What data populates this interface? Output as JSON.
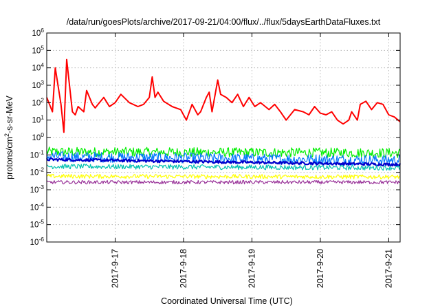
{
  "chart_data": {
    "type": "line",
    "title": "/data/run/goesPlots/archive/2017-09-21/04:00/flux/../flux/5daysEarthDataFluxes.txt",
    "xlabel": "Coordinated Universal Time (UTC)",
    "ylabel_parts": {
      "base": "protons/cm",
      "sup": "2",
      "rest": "-s-sr-MeV"
    },
    "yscale": "log",
    "ylim": [
      1e-06,
      1000000.0
    ],
    "yticks": [
      {
        "value": 1e-06,
        "base": "10",
        "exp": "-6"
      },
      {
        "value": 1e-05,
        "base": "10",
        "exp": "-5"
      },
      {
        "value": 0.0001,
        "base": "10",
        "exp": "-4"
      },
      {
        "value": 0.001,
        "base": "10",
        "exp": "-3"
      },
      {
        "value": 0.01,
        "base": "10",
        "exp": "-2"
      },
      {
        "value": 0.1,
        "base": "10",
        "exp": "-1"
      },
      {
        "value": 1.0,
        "base": "10",
        "exp": "0"
      },
      {
        "value": 10.0,
        "base": "10",
        "exp": "1"
      },
      {
        "value": 100.0,
        "base": "10",
        "exp": "2"
      },
      {
        "value": 1000.0,
        "base": "10",
        "exp": "3"
      },
      {
        "value": 10000.0,
        "base": "10",
        "exp": "4"
      },
      {
        "value": 100000.0,
        "base": "10",
        "exp": "5"
      },
      {
        "value": 1000000.0,
        "base": "10",
        "exp": "6"
      }
    ],
    "xlim": [
      "2017-09-16 00:00",
      "2017-09-21 04:00"
    ],
    "xticks": [
      "2017-9-17",
      "2017-9-18",
      "2017-9-19",
      "2017-9-20",
      "2017-9-21"
    ],
    "grid": true,
    "series": [
      {
        "color": "#ff0000",
        "width": 2.0,
        "x": [
          "2017-09-16 00:00",
          "2017-09-16 02:00",
          "2017-09-16 03:00",
          "2017-09-16 05:00",
          "2017-09-16 06:00",
          "2017-09-16 07:00",
          "2017-09-16 09:00",
          "2017-09-16 10:00",
          "2017-09-16 11:00",
          "2017-09-16 13:00",
          "2017-09-16 14:00",
          "2017-09-16 16:00",
          "2017-09-16 17:00",
          "2017-09-16 18:00",
          "2017-09-16 20:00",
          "2017-09-16 22:00",
          "2017-09-17 00:00",
          "2017-09-17 02:00",
          "2017-09-17 05:00",
          "2017-09-17 08:00",
          "2017-09-17 10:00",
          "2017-09-17 12:00",
          "2017-09-17 13:00",
          "2017-09-17 14:00",
          "2017-09-17 15:00",
          "2017-09-17 17:00",
          "2017-09-17 20:00",
          "2017-09-17 23:00",
          "2017-09-18 01:00",
          "2017-09-18 03:00",
          "2017-09-18 05:00",
          "2017-09-18 06:00",
          "2017-09-18 08:00",
          "2017-09-18 09:00",
          "2017-09-18 10:00",
          "2017-09-18 12:00",
          "2017-09-18 13:00",
          "2017-09-18 15:00",
          "2017-09-18 17:00",
          "2017-09-18 19:00",
          "2017-09-18 21:00",
          "2017-09-18 23:00",
          "2017-09-19 01:00",
          "2017-09-19 03:00",
          "2017-09-19 06:00",
          "2017-09-19 08:00",
          "2017-09-19 10:00",
          "2017-09-19 12:00",
          "2017-09-19 15:00",
          "2017-09-19 18:00",
          "2017-09-19 20:00",
          "2017-09-19 22:00",
          "2017-09-20 00:00",
          "2017-09-20 02:00",
          "2017-09-20 04:00",
          "2017-09-20 06:00",
          "2017-09-20 08:00",
          "2017-09-20 10:00",
          "2017-09-20 11:00",
          "2017-09-20 13:00",
          "2017-09-20 14:00",
          "2017-09-20 16:00",
          "2017-09-20 18:00",
          "2017-09-20 20:00",
          "2017-09-20 22:00",
          "2017-09-21 00:00",
          "2017-09-21 02:00",
          "2017-09-21 04:00"
        ],
        "y": [
          200,
          30,
          10000.0,
          80,
          2,
          30000.0,
          30,
          20,
          60,
          30,
          500,
          80,
          50,
          80,
          200,
          60,
          100,
          300,
          100,
          60,
          80,
          200,
          3000.0,
          200,
          400,
          120,
          60,
          40,
          10,
          80,
          20,
          30,
          200,
          400,
          30,
          2000.0,
          300,
          200,
          100,
          300,
          60,
          200,
          60,
          100,
          40,
          80,
          30,
          10,
          40,
          30,
          20,
          60,
          25,
          20,
          30,
          10,
          6,
          10,
          30,
          10,
          80,
          120,
          40,
          100,
          80,
          20,
          15,
          8
        ]
      },
      {
        "color": "#00ee00",
        "width": 1.2,
        "x": [
          "2017-09-16 00:00",
          "2017-09-21 04:00"
        ],
        "y": [
          0.15,
          0.13
        ],
        "noise": 0.28
      },
      {
        "color": "#0077ff",
        "width": 1.2,
        "x": [
          "2017-09-16 00:00",
          "2017-09-21 04:00"
        ],
        "y": [
          0.08,
          0.05
        ],
        "noise": 0.3
      },
      {
        "color": "#0000cc",
        "width": 2.2,
        "x": [
          "2017-09-16 00:00",
          "2017-09-21 04:00"
        ],
        "y": [
          0.055,
          0.028
        ],
        "noise": 0.08
      },
      {
        "color": "#00c0b0",
        "width": 1.2,
        "x": [
          "2017-09-16 00:00",
          "2017-09-21 04:00"
        ],
        "y": [
          0.022,
          0.018
        ],
        "noise": 0.14
      },
      {
        "color": "#ffff00",
        "width": 1.2,
        "x": [
          "2017-09-16 00:00",
          "2017-09-21 04:00"
        ],
        "y": [
          0.006,
          0.0055
        ],
        "noise": 0.12
      },
      {
        "color": "#993399",
        "width": 1.2,
        "x": [
          "2017-09-16 00:00",
          "2017-09-21 04:00"
        ],
        "y": [
          0.0027,
          0.0027
        ],
        "noise": 0.1
      }
    ]
  }
}
